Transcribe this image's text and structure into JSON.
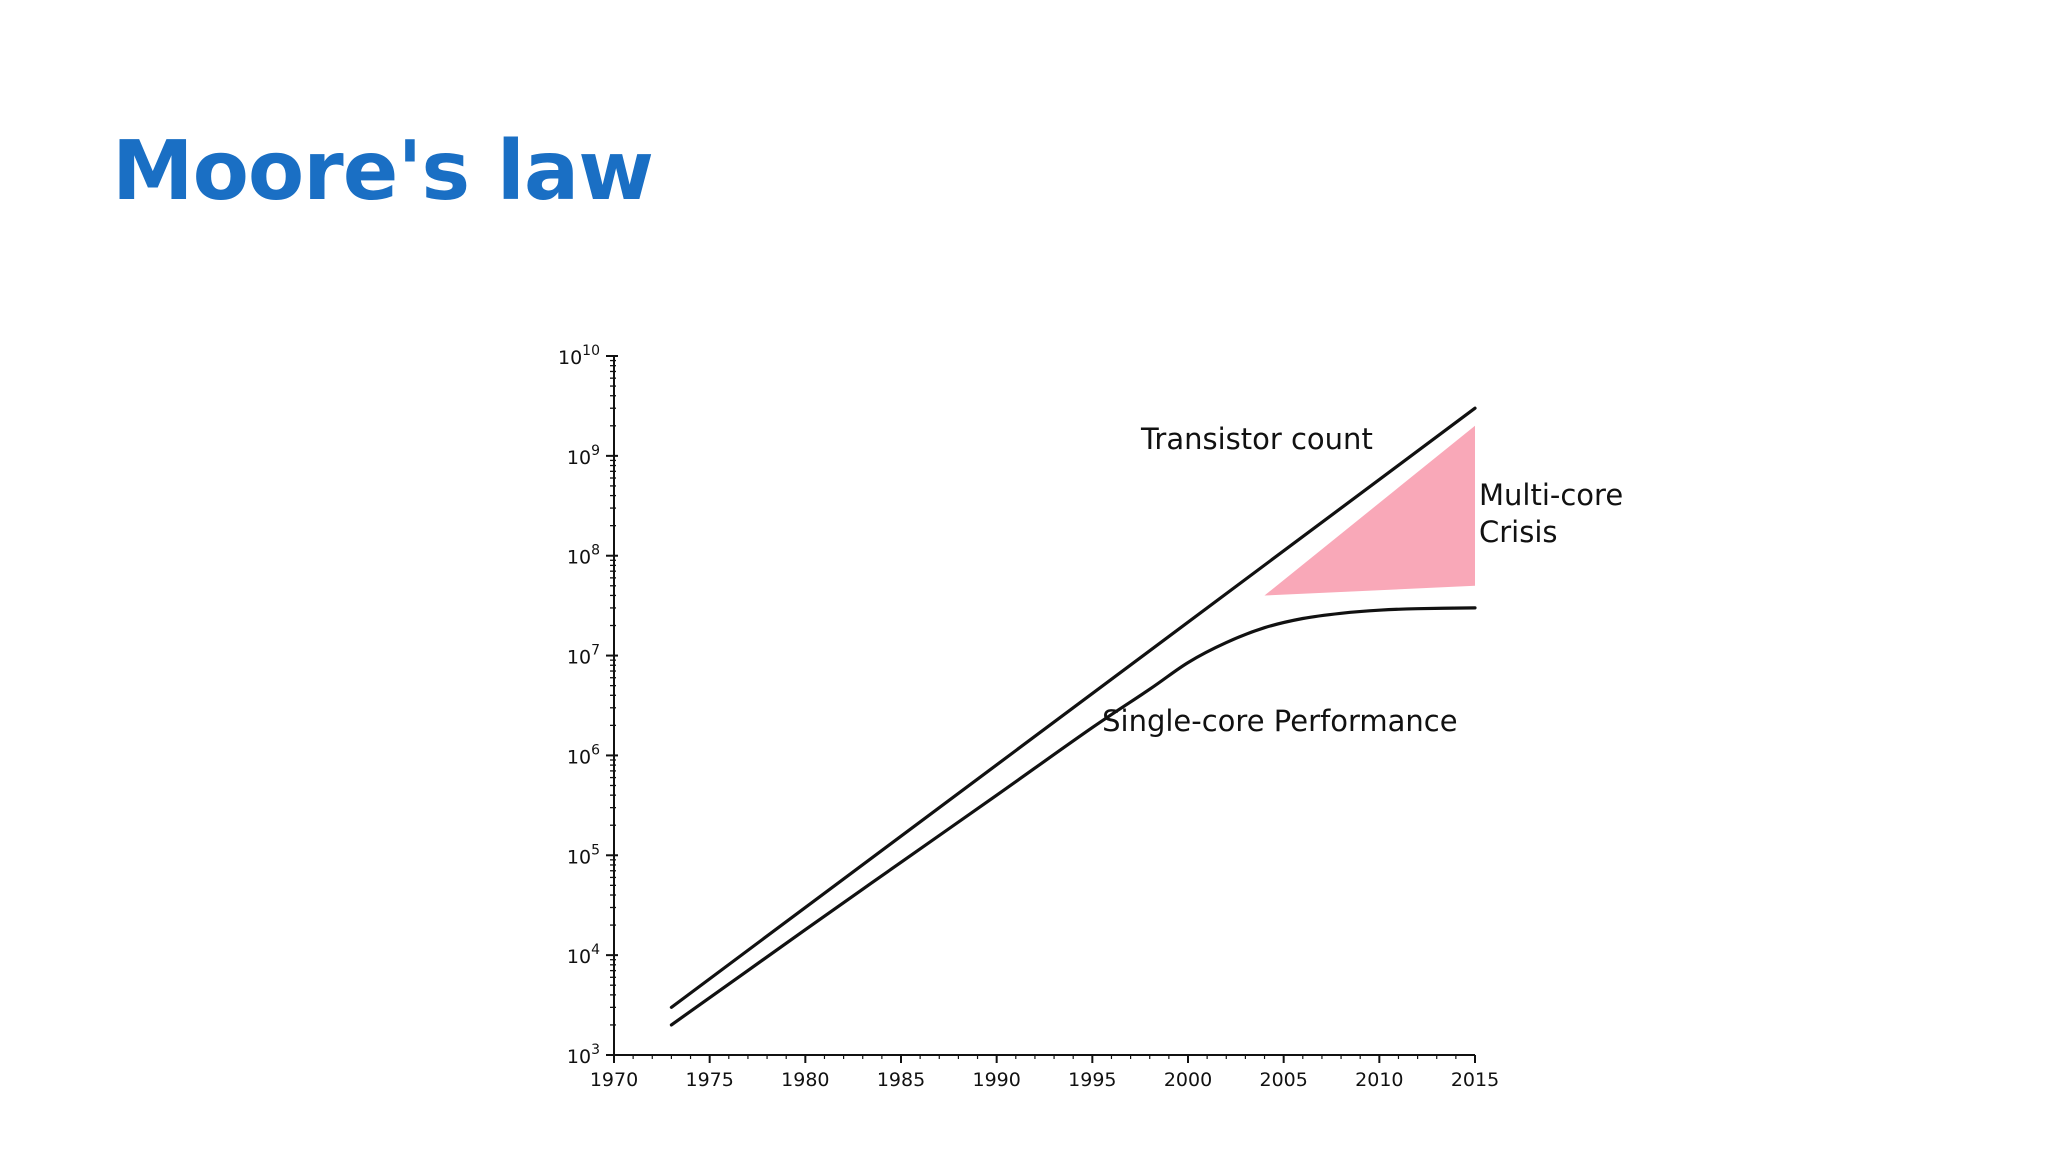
{
  "slide": {
    "title": "Moore's law"
  },
  "colors": {
    "title": "#1a6fc4",
    "line": "#111111",
    "crisis_fill": "#f9a8b8",
    "axis": "#111111"
  },
  "chart_data": {
    "type": "line",
    "title": "",
    "xlabel": "",
    "ylabel": "",
    "xlim": [
      1970,
      2015
    ],
    "ylim": [
      1000,
      10000000000
    ],
    "yscale": "log",
    "grid": false,
    "x_ticks": [
      1970,
      1975,
      1980,
      1985,
      1990,
      1995,
      2000,
      2005,
      2010,
      2015
    ],
    "y_ticks": [
      {
        "base": "10",
        "exp": "3",
        "value": 1000
      },
      {
        "base": "10",
        "exp": "4",
        "value": 10000
      },
      {
        "base": "10",
        "exp": "5",
        "value": 100000
      },
      {
        "base": "10",
        "exp": "6",
        "value": 1000000
      },
      {
        "base": "10",
        "exp": "7",
        "value": 10000000
      },
      {
        "base": "10",
        "exp": "8",
        "value": 100000000
      },
      {
        "base": "10",
        "exp": "9",
        "value": 1000000000
      },
      {
        "base": "10",
        "exp": "10",
        "value": 10000000000
      }
    ],
    "series": [
      {
        "name": "Transistor count",
        "x": [
          1973,
          2015
        ],
        "y": [
          3000,
          3000000000
        ]
      },
      {
        "name": "Single-core Performance",
        "x": [
          1973,
          1980,
          1985,
          1990,
          1995,
          1998,
          2000,
          2002,
          2004,
          2006,
          2008,
          2010,
          2012,
          2015
        ],
        "y": [
          2000,
          18000,
          85000,
          400000,
          1900000,
          4600000,
          8500000,
          13500000,
          19000000,
          23500000,
          26500000,
          28500000,
          29500000,
          30000000
        ]
      }
    ],
    "annotations": [
      {
        "name": "multi-core-crisis",
        "lines": [
          "Multi-core",
          "Crisis"
        ]
      }
    ],
    "crisis_region": {
      "x": [
        2004,
        2015,
        2015
      ],
      "y": [
        40000000,
        2000000000,
        50000000
      ]
    }
  }
}
